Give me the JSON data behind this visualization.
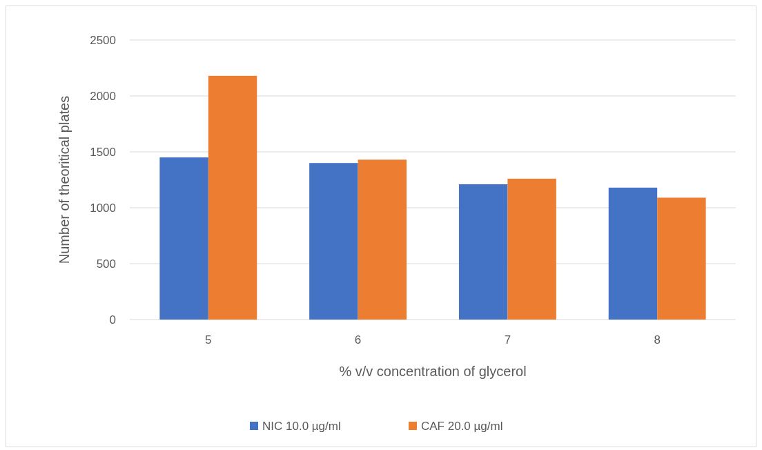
{
  "chart_data": {
    "type": "bar",
    "xlabel": "% v/v concentration of glycerol",
    "ylabel": "Number of theoritical plates",
    "categories": [
      "5",
      "6",
      "7",
      "8"
    ],
    "series": [
      {
        "name": "NIC 10.0 µg/ml",
        "color": "#4472c4",
        "values": [
          1450,
          1400,
          1210,
          1180
        ]
      },
      {
        "name": "CAF 20.0 µg/ml",
        "color": "#ed7d31",
        "values": [
          2180,
          1430,
          1260,
          1090
        ]
      }
    ],
    "ylim": [
      0,
      2500
    ],
    "yticks": [
      0,
      500,
      1000,
      1500,
      2000,
      2500
    ],
    "grid": "y",
    "legend": "bottom"
  }
}
